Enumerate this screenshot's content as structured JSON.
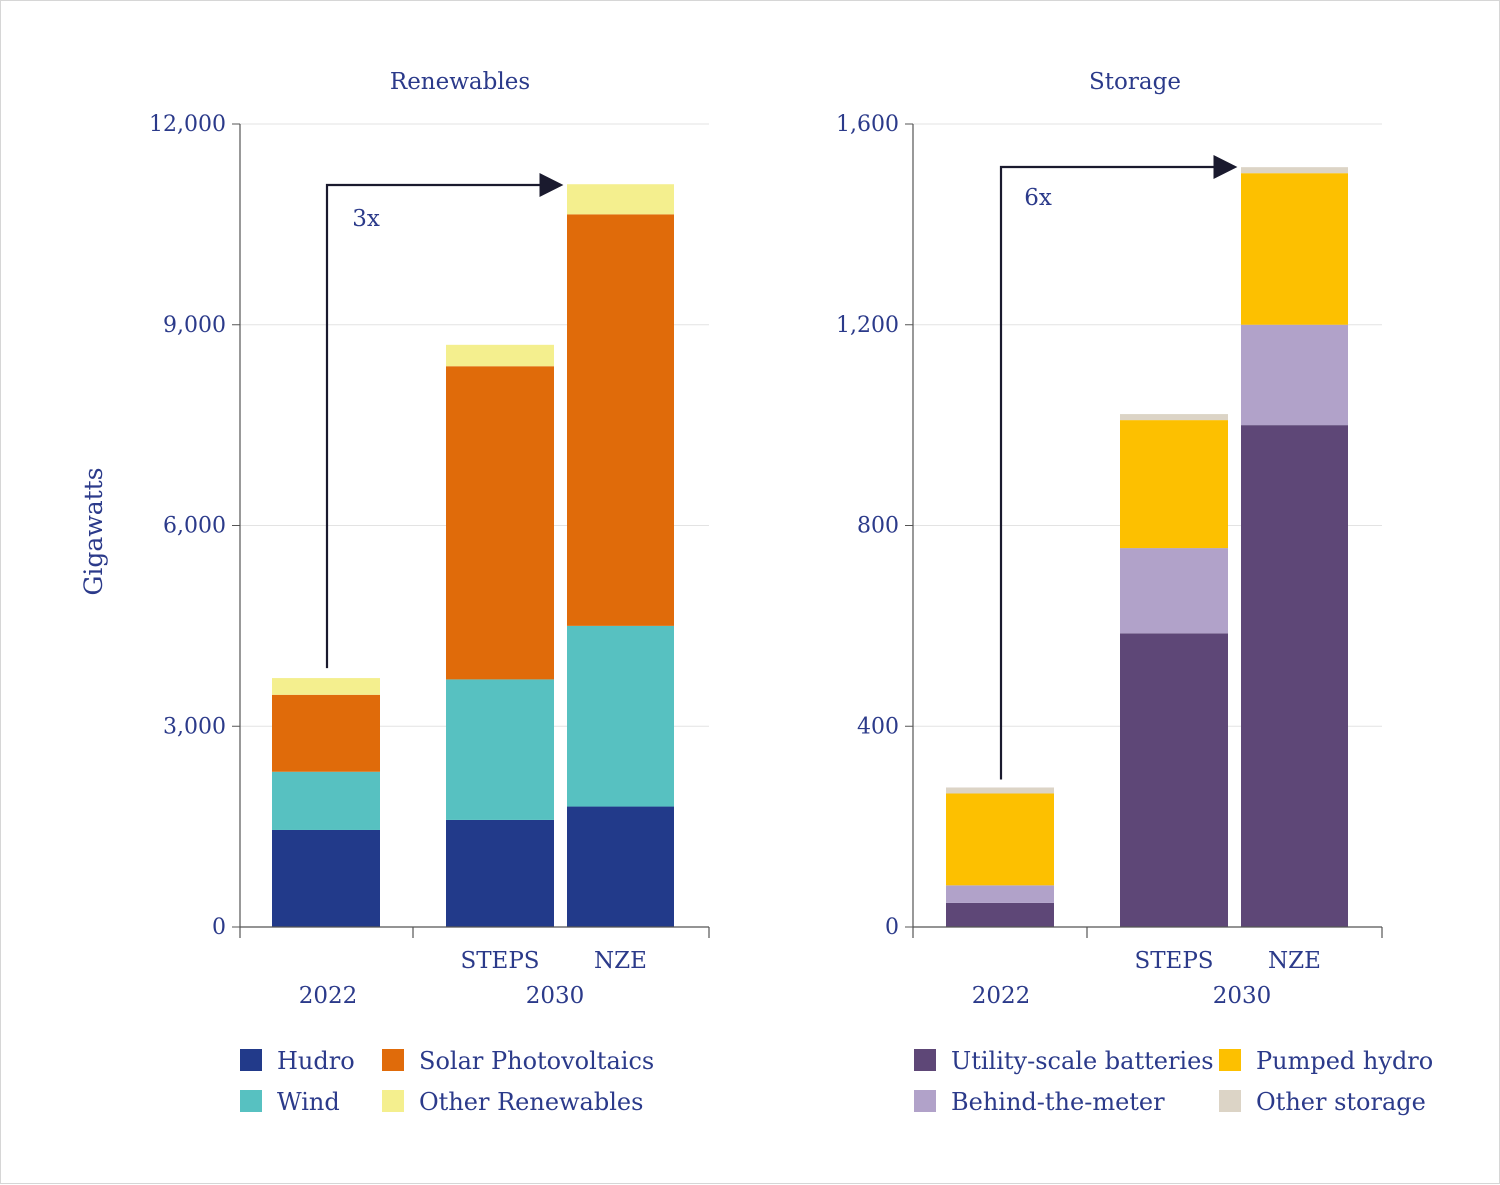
{
  "colors": {
    "text": "#2b3a8a",
    "axis": "#555555",
    "grid": "#e3e3e3",
    "arrow": "#1a1a2e"
  },
  "chart_data": [
    {
      "type": "bar",
      "stacked": true,
      "title": "Renewables",
      "ylabel": "Gigawatts",
      "ylim": [
        0,
        12000
      ],
      "yticks": [
        0,
        3000,
        6000,
        9000,
        12000
      ],
      "ytick_labels": [
        "0",
        "3,000",
        "6,000",
        "9,000",
        "12,000"
      ],
      "bars": [
        "2022",
        "STEPS",
        "NZE"
      ],
      "bar_labels": [
        "",
        "STEPS",
        "NZE"
      ],
      "groups": [
        {
          "label": "2022",
          "bars": [
            "2022"
          ]
        },
        {
          "label": "2030",
          "bars": [
            "STEPS",
            "NZE"
          ]
        }
      ],
      "series": [
        {
          "name": "Hudro",
          "color": "#223a8a",
          "values": [
            1450,
            1600,
            1800
          ]
        },
        {
          "name": "Wind",
          "color": "#57c1c1",
          "values": [
            870,
            2100,
            2700
          ]
        },
        {
          "name": "Solar Photovoltaics",
          "color": "#e06b0a",
          "values": [
            1150,
            4680,
            6150
          ]
        },
        {
          "name": "Other Renewables",
          "color": "#f4ef8e",
          "values": [
            250,
            320,
            450
          ]
        }
      ],
      "legend": [
        "Hudro",
        "Solar Photovoltaics",
        "Wind",
        "Other Renewables"
      ],
      "annotation": {
        "text": "3x",
        "from": "2022",
        "to": "NZE"
      }
    },
    {
      "type": "bar",
      "stacked": true,
      "title": "Storage",
      "ylabel": "",
      "ylim": [
        0,
        1600
      ],
      "yticks": [
        0,
        400,
        800,
        1200,
        1600
      ],
      "ytick_labels": [
        "0",
        "400",
        "800",
        "1,200",
        "1,600"
      ],
      "bars": [
        "2022",
        "STEPS",
        "NZE"
      ],
      "bar_labels": [
        "",
        "STEPS",
        "NZE"
      ],
      "groups": [
        {
          "label": "2022",
          "bars": [
            "2022"
          ]
        },
        {
          "label": "2030",
          "bars": [
            "STEPS",
            "NZE"
          ]
        }
      ],
      "series": [
        {
          "name": "Utility-scale batteries",
          "color": "#5e4777",
          "values": [
            48,
            585,
            1000
          ]
        },
        {
          "name": "Behind-the-meter",
          "color": "#b1a2c9",
          "values": [
            35,
            170,
            200
          ]
        },
        {
          "name": "Pumped hydro",
          "color": "#fdc000",
          "values": [
            183,
            255,
            302
          ]
        },
        {
          "name": "Other storage",
          "color": "#dcd4c6",
          "values": [
            12,
            12,
            12
          ]
        }
      ],
      "legend": [
        "Utility-scale batteries",
        "Pumped hydro",
        "Behind-the-meter",
        "Other storage"
      ],
      "annotation": {
        "text": "6x",
        "from": "2022",
        "to": "NZE"
      }
    }
  ]
}
